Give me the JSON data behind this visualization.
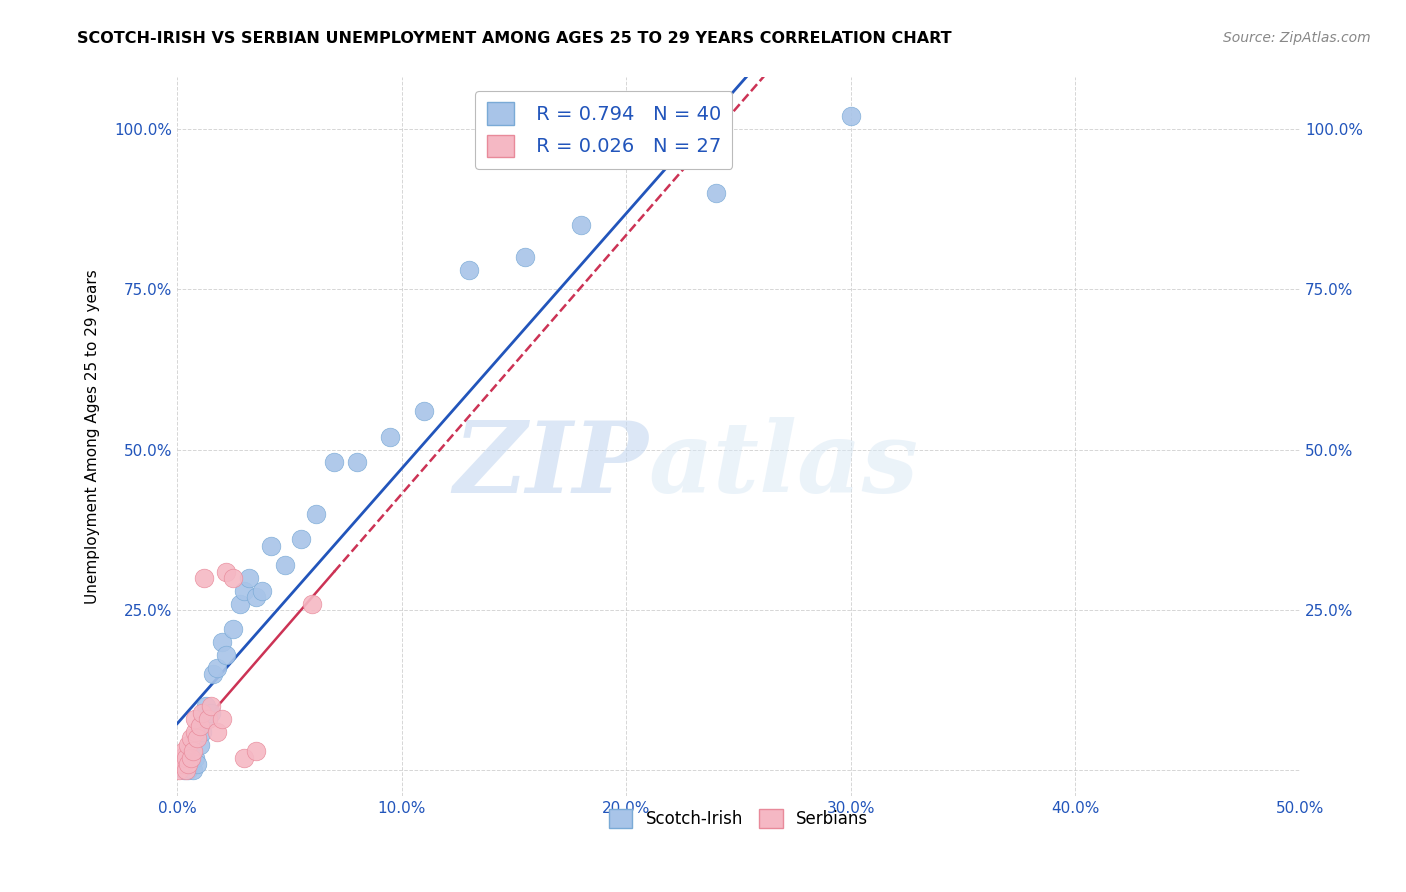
{
  "title": "SCOTCH-IRISH VS SERBIAN UNEMPLOYMENT AMONG AGES 25 TO 29 YEARS CORRELATION CHART",
  "source": "Source: ZipAtlas.com",
  "ylabel": "Unemployment Among Ages 25 to 29 years",
  "xlim": [
    0.0,
    0.5
  ],
  "ylim": [
    -0.04,
    1.08
  ],
  "xticks": [
    0.0,
    0.1,
    0.2,
    0.3,
    0.4,
    0.5
  ],
  "yticks": [
    0.0,
    0.25,
    0.5,
    0.75,
    1.0
  ],
  "xticklabels": [
    "0.0%",
    "10.0%",
    "20.0%",
    "30.0%",
    "40.0%",
    "50.0%"
  ],
  "yticklabels": [
    "",
    "25.0%",
    "50.0%",
    "75.0%",
    "100.0%"
  ],
  "watermark_zip": "ZIP",
  "watermark_atlas": "atlas",
  "scotch_irish_color": "#a8c4e8",
  "scotch_irish_edge_color": "#7aaad6",
  "serbian_color": "#f5b8c4",
  "serbian_edge_color": "#e88a9a",
  "scotch_irish_line_color": "#2255bb",
  "serbian_line_color": "#cc3355",
  "legend_r1": "R = 0.794",
  "legend_n1": "N = 40",
  "legend_r2": "R = 0.026",
  "legend_n2": "N = 27",
  "scotch_irish_label": "Scotch-Irish",
  "serbian_label": "Serbians",
  "scotch_irish_x": [
    0.002,
    0.003,
    0.004,
    0.005,
    0.005,
    0.006,
    0.006,
    0.007,
    0.008,
    0.008,
    0.009,
    0.01,
    0.01,
    0.011,
    0.012,
    0.013,
    0.015,
    0.016,
    0.018,
    0.02,
    0.022,
    0.025,
    0.028,
    0.03,
    0.032,
    0.035,
    0.038,
    0.042,
    0.048,
    0.055,
    0.062,
    0.07,
    0.08,
    0.095,
    0.11,
    0.13,
    0.155,
    0.18,
    0.24,
    0.3
  ],
  "scotch_irish_y": [
    0.01,
    0.0,
    0.01,
    0.02,
    0.0,
    0.01,
    0.03,
    0.0,
    0.02,
    0.05,
    0.01,
    0.04,
    0.07,
    0.06,
    0.08,
    0.1,
    0.09,
    0.15,
    0.16,
    0.2,
    0.18,
    0.22,
    0.26,
    0.28,
    0.3,
    0.27,
    0.28,
    0.35,
    0.32,
    0.36,
    0.4,
    0.48,
    0.48,
    0.52,
    0.56,
    0.78,
    0.8,
    0.85,
    0.9,
    1.02
  ],
  "serbian_x": [
    0.001,
    0.002,
    0.002,
    0.003,
    0.003,
    0.004,
    0.004,
    0.005,
    0.005,
    0.006,
    0.006,
    0.007,
    0.008,
    0.008,
    0.009,
    0.01,
    0.011,
    0.012,
    0.014,
    0.015,
    0.018,
    0.02,
    0.022,
    0.025,
    0.03,
    0.035,
    0.06
  ],
  "serbian_y": [
    0.0,
    0.01,
    0.02,
    0.01,
    0.03,
    0.0,
    0.02,
    0.01,
    0.04,
    0.02,
    0.05,
    0.03,
    0.06,
    0.08,
    0.05,
    0.07,
    0.09,
    0.3,
    0.08,
    0.1,
    0.06,
    0.08,
    0.31,
    0.3,
    0.02,
    0.03,
    0.26
  ]
}
